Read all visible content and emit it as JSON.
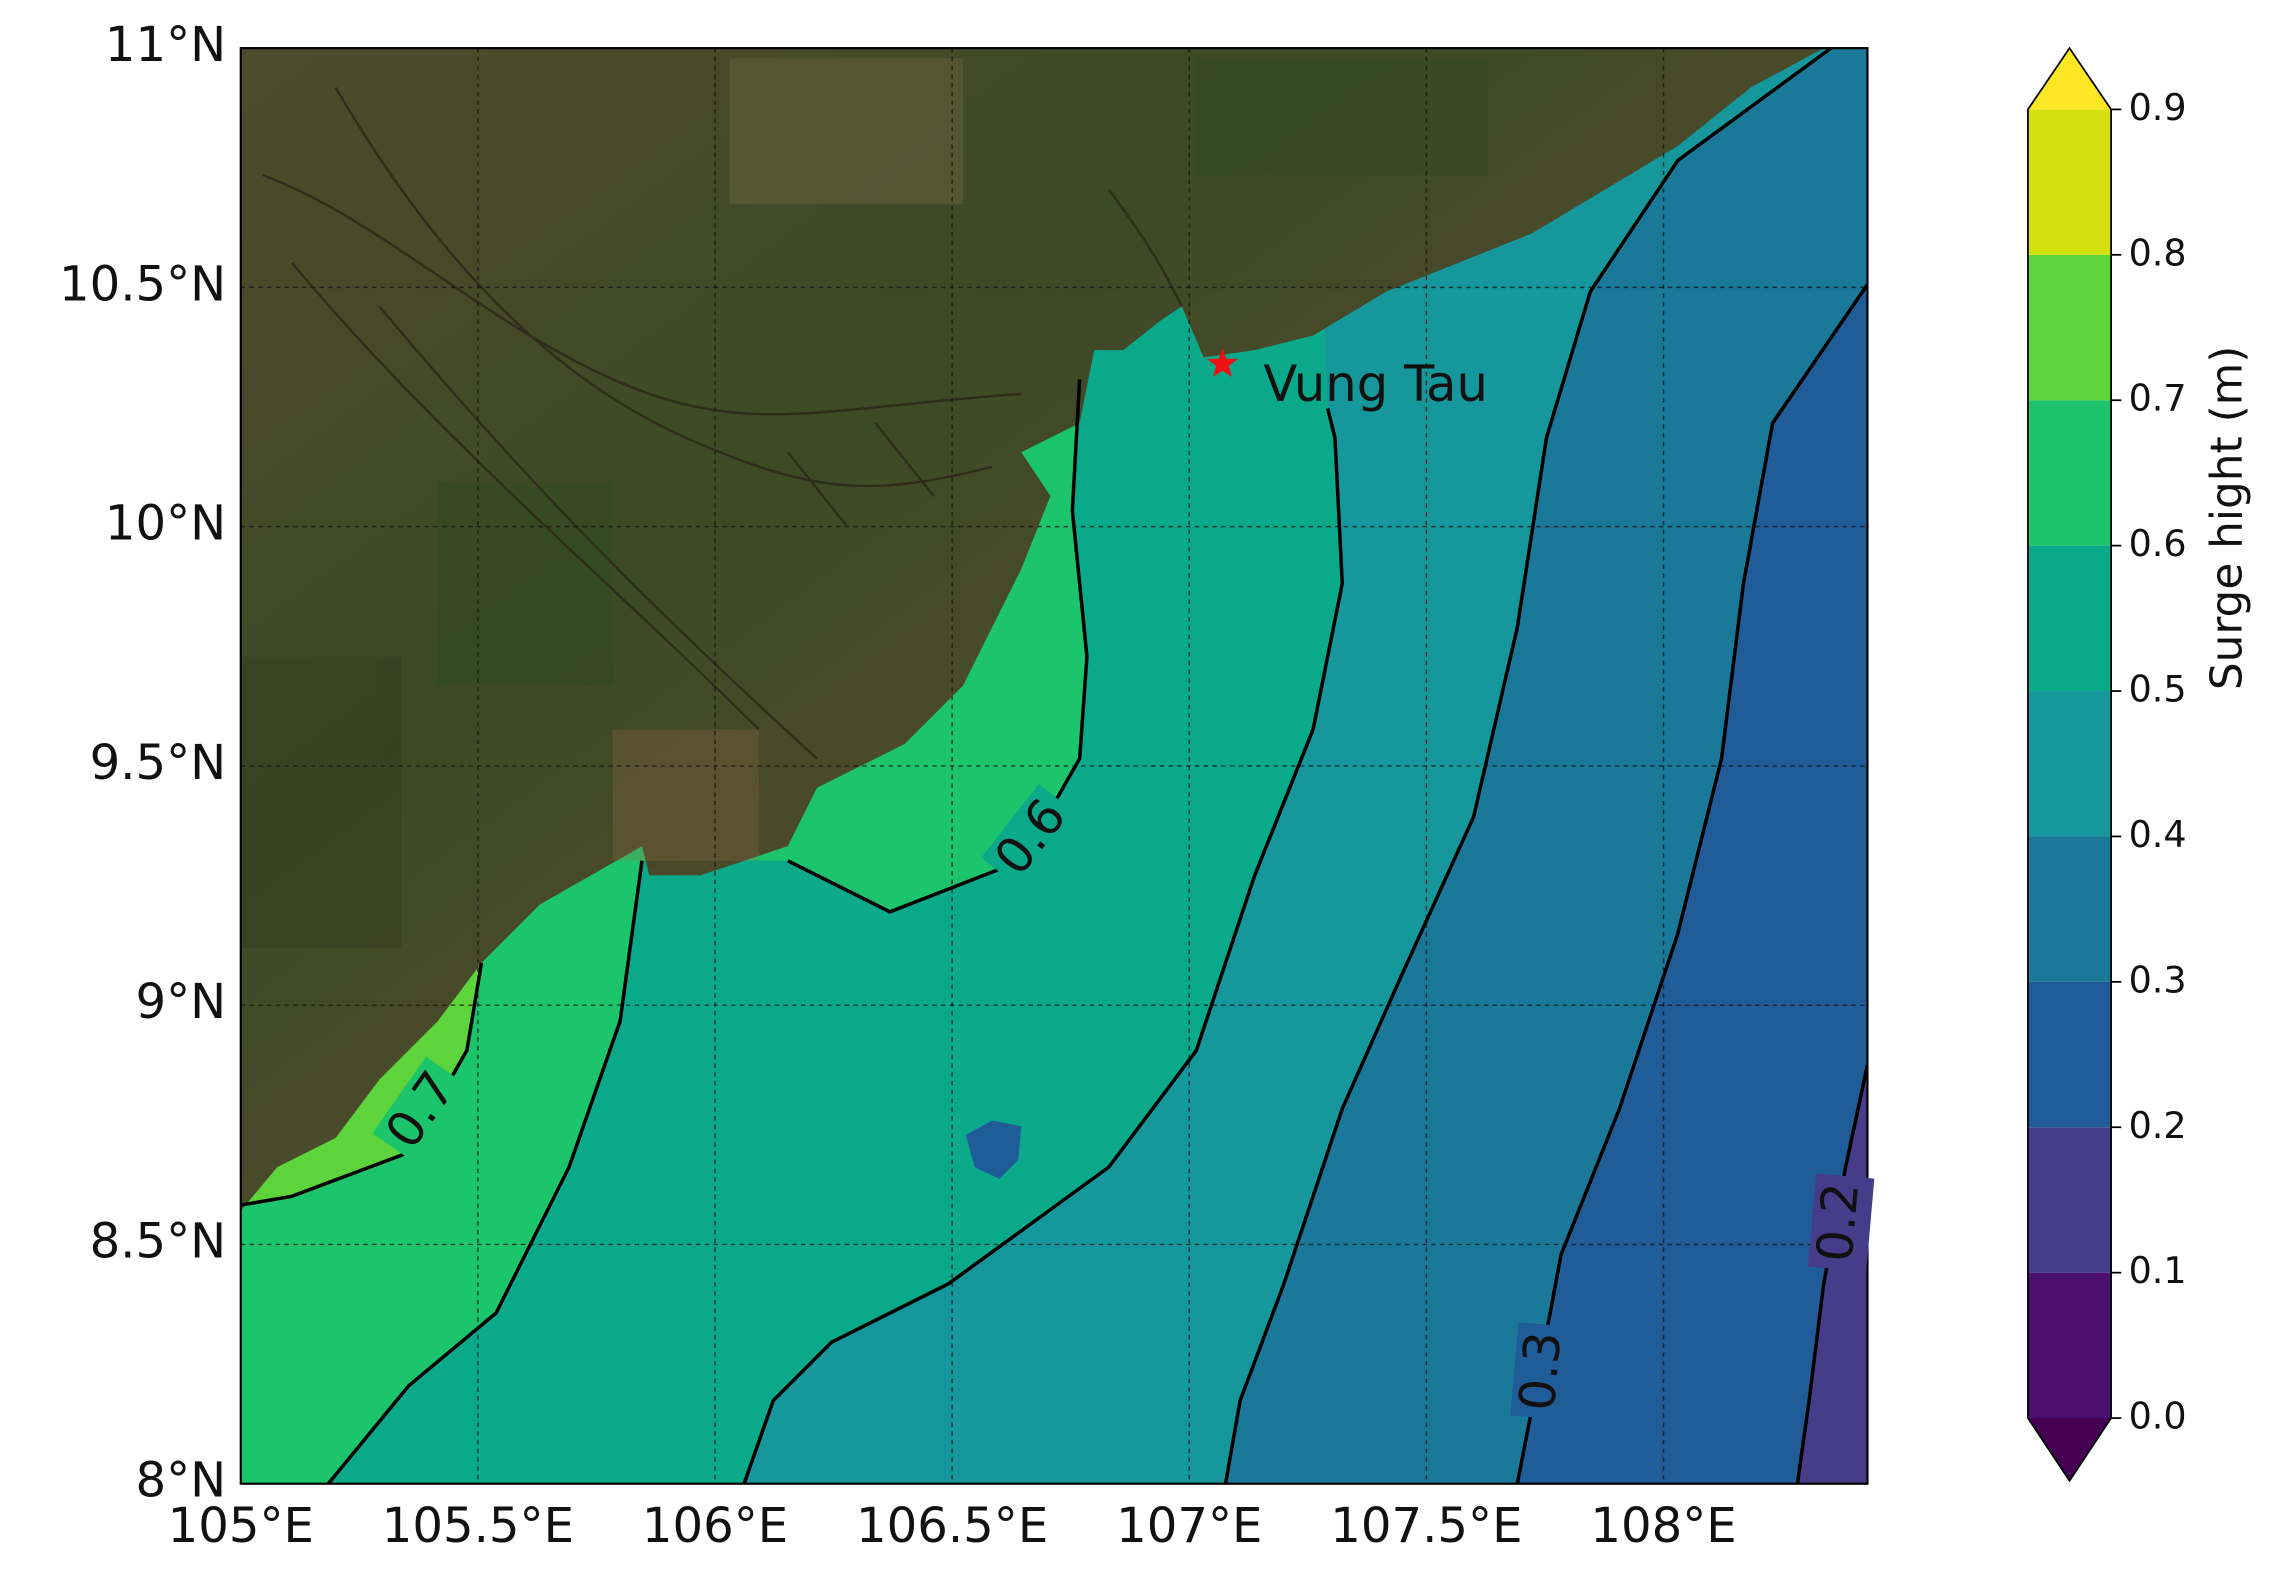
{
  "chart_data": {
    "type": "contour-map",
    "xlim": [
      105,
      108.43
    ],
    "ylim": [
      8,
      11
    ],
    "xticks": [
      {
        "value": 105,
        "label": "105°E"
      },
      {
        "value": 105.5,
        "label": "105.5°E"
      },
      {
        "value": 106,
        "label": "106°E"
      },
      {
        "value": 106.5,
        "label": "106.5°E"
      },
      {
        "value": 107,
        "label": "107°E"
      },
      {
        "value": 107.5,
        "label": "107.5°E"
      },
      {
        "value": 108,
        "label": "108°E"
      }
    ],
    "yticks": [
      {
        "value": 8,
        "label": "8°N"
      },
      {
        "value": 8.5,
        "label": "8.5°N"
      },
      {
        "value": 9,
        "label": "9°N"
      },
      {
        "value": 9.5,
        "label": "9.5°N"
      },
      {
        "value": 10,
        "label": "10°N"
      },
      {
        "value": 10.5,
        "label": "10.5°N"
      },
      {
        "value": 11,
        "label": "11°N"
      }
    ],
    "grid": true,
    "colorbar": {
      "label": "Surge hight (m)",
      "ylim": [
        0,
        0.9
      ],
      "yticks": [
        {
          "value": 0,
          "label": "0.0"
        },
        0.1,
        0.2,
        0.3,
        0.4,
        0.5,
        0.6,
        0.7,
        0.8,
        0.9
      ],
      "colors": [
        "#4b0f6f",
        "#463c8a",
        "#1f5c98",
        "#1a7899",
        "#15979b",
        "#0aa98a",
        "#1cc46b",
        "#5dd43c",
        "#d6e00f"
      ],
      "under_color": "#440154",
      "over_color": "#fde725"
    },
    "contour_labels": [
      0.6,
      0.7,
      0.3,
      0.2
    ],
    "markers": [
      {
        "name": "Vung Tau",
        "lon": 107.07,
        "lat": 10.34,
        "color": "#ee1111"
      }
    ]
  }
}
